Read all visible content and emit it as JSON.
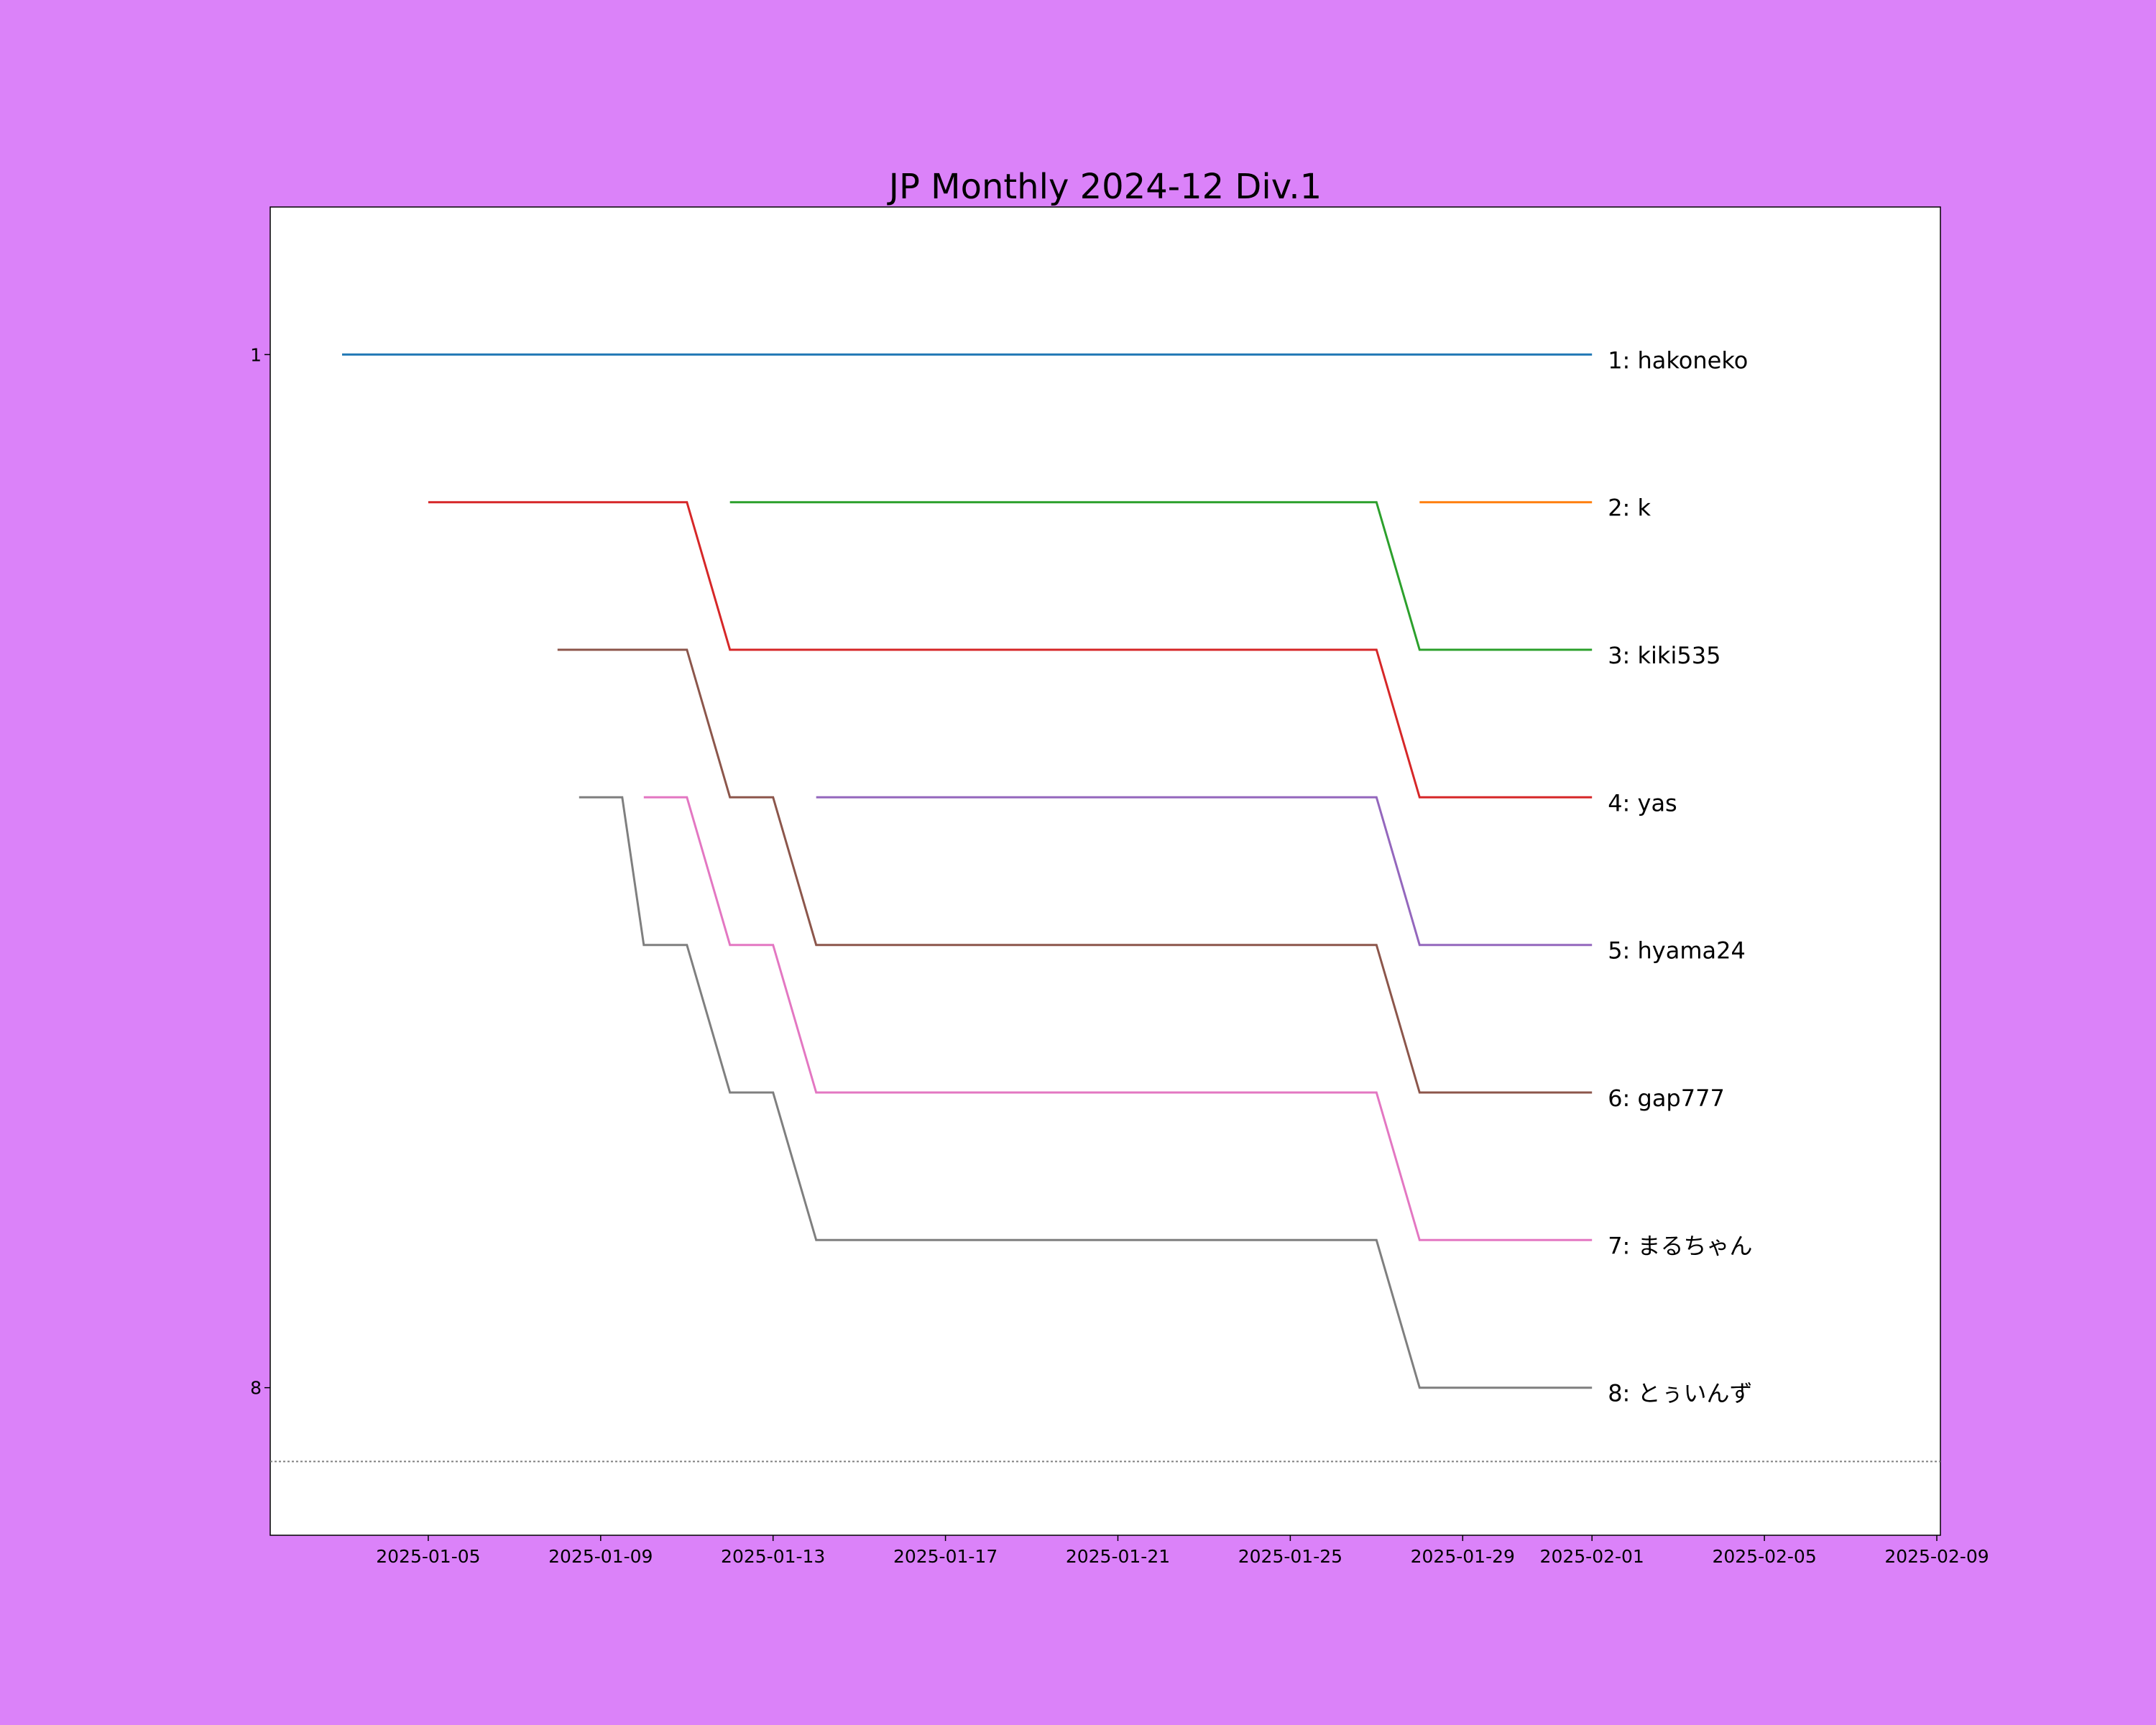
{
  "colors": {
    "background": "#db82f9",
    "plot_background": "#ffffff",
    "cutoff_line": "#808080"
  },
  "chart_data": {
    "type": "line",
    "title": "JP Monthly 2024-12 Div.1",
    "xlabel": "",
    "ylabel": "",
    "x_type": "date",
    "xlim": [
      "2025-01-01T08:00",
      "2025-02-09T02:00"
    ],
    "ylim": [
      9,
      0
    ],
    "y_inverted": true,
    "grid": false,
    "legend": "none; series labelled at line ends",
    "x_ticks": [
      "2025-01-05",
      "2025-01-09",
      "2025-01-13",
      "2025-01-17",
      "2025-01-21",
      "2025-01-25",
      "2025-01-29",
      "2025-02-01",
      "2025-02-05",
      "2025-02-09"
    ],
    "y_ticks": [
      1,
      8
    ],
    "cutoff_rank": 8.5,
    "series": [
      {
        "name": "1: hakoneko",
        "color": "#1f77b4",
        "x": [
          "2025-01-03",
          "2025-02-01"
        ],
        "y": [
          1,
          1
        ]
      },
      {
        "name": "2: k",
        "color": "#ff7f0e",
        "x": [
          "2025-01-28",
          "2025-02-01"
        ],
        "y": [
          2,
          2
        ]
      },
      {
        "name": "3: kiki535",
        "color": "#2ca02c",
        "x": [
          "2025-01-12",
          "2025-01-27",
          "2025-01-28",
          "2025-02-01"
        ],
        "y": [
          2,
          2,
          3,
          3
        ]
      },
      {
        "name": "4: yas",
        "color": "#d62728",
        "x": [
          "2025-01-05",
          "2025-01-11",
          "2025-01-12",
          "2025-01-27",
          "2025-01-28",
          "2025-02-01"
        ],
        "y": [
          2,
          2,
          3,
          3,
          4,
          4
        ]
      },
      {
        "name": "5: hyama24",
        "color": "#9467bd",
        "x": [
          "2025-01-14",
          "2025-01-27",
          "2025-01-28",
          "2025-02-01"
        ],
        "y": [
          4,
          4,
          5,
          5
        ]
      },
      {
        "name": "6: gap777",
        "color": "#8c564b",
        "x": [
          "2025-01-08",
          "2025-01-11",
          "2025-01-12",
          "2025-01-13",
          "2025-01-14",
          "2025-01-27",
          "2025-01-28",
          "2025-02-01"
        ],
        "y": [
          3,
          3,
          4,
          4,
          5,
          5,
          6,
          6
        ]
      },
      {
        "name": "7: まるちゃん",
        "color": "#e377c2",
        "x": [
          "2025-01-10",
          "2025-01-11",
          "2025-01-12",
          "2025-01-13",
          "2025-01-14",
          "2025-01-27",
          "2025-01-28",
          "2025-02-01"
        ],
        "y": [
          4,
          4,
          5,
          5,
          6,
          6,
          7,
          7
        ]
      },
      {
        "name": "8: とぅいんず",
        "color": "#7f7f7f",
        "x": [
          "2025-01-08T12:00",
          "2025-01-09T12:00",
          "2025-01-10",
          "2025-01-11",
          "2025-01-12",
          "2025-01-13",
          "2025-01-14",
          "2025-01-27",
          "2025-01-28",
          "2025-02-01"
        ],
        "y": [
          4,
          4,
          5,
          5,
          6,
          6,
          7,
          7,
          8,
          8
        ]
      }
    ]
  }
}
